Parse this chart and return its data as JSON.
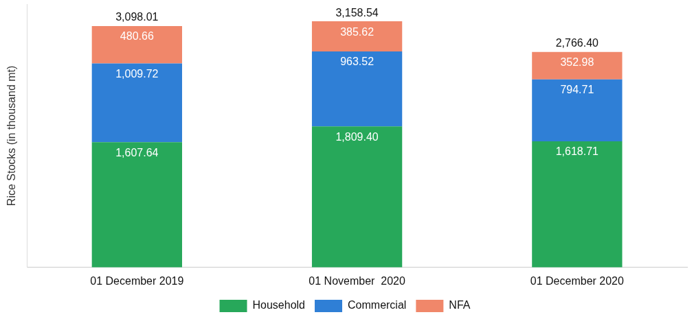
{
  "chart_data": {
    "type": "bar",
    "stacked": true,
    "ylabel": "Rice Stocks (in thousand mt)",
    "categories": [
      "01 December 2019",
      "01 November  2020",
      "01 December 2020"
    ],
    "series": [
      {
        "name": "Household",
        "color": "#27a85a",
        "values": [
          1607.64,
          1809.4,
          1618.71
        ],
        "value_labels": [
          "1,607.64",
          "1,809.40",
          "1,618.71"
        ]
      },
      {
        "name": "Commercial",
        "color": "#2f7fd6",
        "values": [
          1009.72,
          963.52,
          794.71
        ],
        "value_labels": [
          "1,009.72",
          "963.52",
          "794.71"
        ]
      },
      {
        "name": "NFA",
        "color": "#f0876a",
        "values": [
          480.66,
          385.62,
          352.98
        ],
        "value_labels": [
          "480.66",
          "385.62",
          "352.98"
        ]
      }
    ],
    "totals": [
      "3,098.01",
      "3,158.54",
      "2,766.40"
    ],
    "legend": "bottom",
    "grid": false
  }
}
